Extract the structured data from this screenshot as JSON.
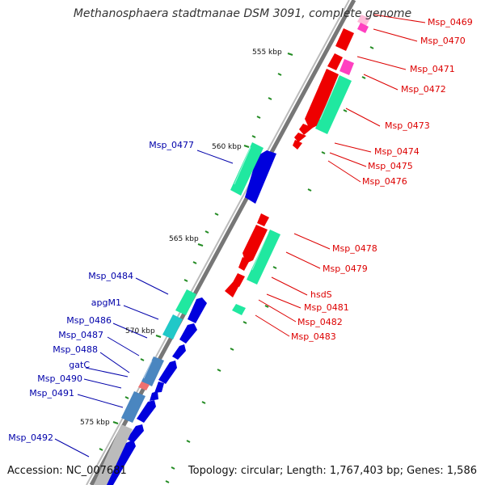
{
  "title": "Methanosphaera stadtmanae DSM 3091, complete genome",
  "accession": "Accession: NC_007681",
  "summary": "Topology: circular; Length: 1,767,403 bp; Genes: 1,586",
  "kbp_ticks": [
    "555 kbp",
    "560 kbp",
    "565 kbp",
    "570 kbp",
    "575 kbp"
  ],
  "labels_right": [
    "Msp_0469",
    "Msp_0470",
    "Msp_0471",
    "Msp_0472",
    "Msp_0473",
    "Msp_0474",
    "Msp_0475",
    "Msp_0476",
    "Msp_0478",
    "Msp_0479",
    "hsdS",
    "Msp_0481",
    "Msp_0482",
    "Msp_0483"
  ],
  "labels_left": [
    "Msp_0477",
    "Msp_0484",
    "apgM1",
    "Msp_0486",
    "Msp_0487",
    "Msp_0488",
    "gatC",
    "Msp_0490",
    "Msp_0491",
    "Msp_0492"
  ],
  "colors": {
    "forward_gene": "#0000dd",
    "reverse_gene": "#ee0000",
    "rna_like": "#20e8a0",
    "light_cyan": "#20c8c8",
    "steel_blue": "#4a86c0",
    "pink": "#ff40c0",
    "backbone": "#888888",
    "tick": "#228b22"
  }
}
